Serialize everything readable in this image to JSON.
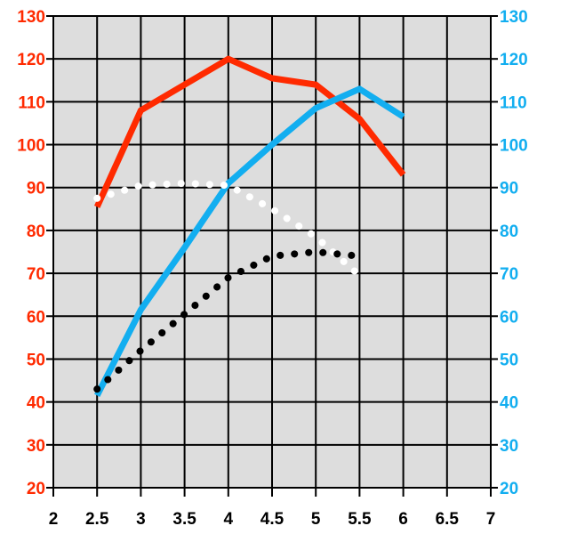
{
  "chart_data": {
    "type": "line",
    "title": "",
    "xlabel": "",
    "ylabel_left": "",
    "ylabel_right": "",
    "xlim": [
      2,
      7
    ],
    "ylim": [
      20,
      130
    ],
    "x_ticks": [
      "2",
      "2.5",
      "3",
      "3.5",
      "4",
      "4.5",
      "5",
      "5.5",
      "6",
      "6.5",
      "7"
    ],
    "y_ticks_left": [
      "130",
      "120",
      "110",
      "100",
      "90",
      "80",
      "70",
      "60",
      "50",
      "40",
      "30",
      "20"
    ],
    "y_ticks_right": [
      "130",
      "120",
      "110",
      "100",
      "90",
      "80",
      "70",
      "60",
      "50",
      "40",
      "30",
      "20"
    ],
    "grid": true,
    "background_color": "#dddddd",
    "colors": {
      "left_axis": "#ff2a00",
      "right_axis": "#12aef0"
    },
    "series": [
      {
        "style": "solid",
        "color": "#ff2a00",
        "x": [
          2.5,
          3,
          3.5,
          4,
          4.5,
          5,
          5.5,
          6
        ],
        "y": [
          85.5,
          108,
          114,
          120,
          115.5,
          114,
          106,
          93
        ]
      },
      {
        "style": "solid",
        "color": "#12aef0",
        "x": [
          2.5,
          3,
          3.5,
          4,
          4.5,
          5,
          5.5,
          6
        ],
        "y": [
          41.5,
          61.5,
          76,
          91,
          100,
          108.5,
          113,
          106.5
        ]
      },
      {
        "style": "dotted",
        "color": "#ffffff",
        "x": [
          2.5,
          3,
          3.5,
          4,
          4.5,
          5,
          5.5
        ],
        "y": [
          87.5,
          90.5,
          91,
          90.5,
          85,
          78.5,
          69.5
        ]
      },
      {
        "style": "dotted",
        "color": "#000000",
        "x": [
          2.5,
          3,
          3.5,
          4,
          4.5,
          5,
          5.5
        ],
        "y": [
          43,
          52,
          60.5,
          69,
          74,
          75,
          74
        ]
      }
    ]
  }
}
